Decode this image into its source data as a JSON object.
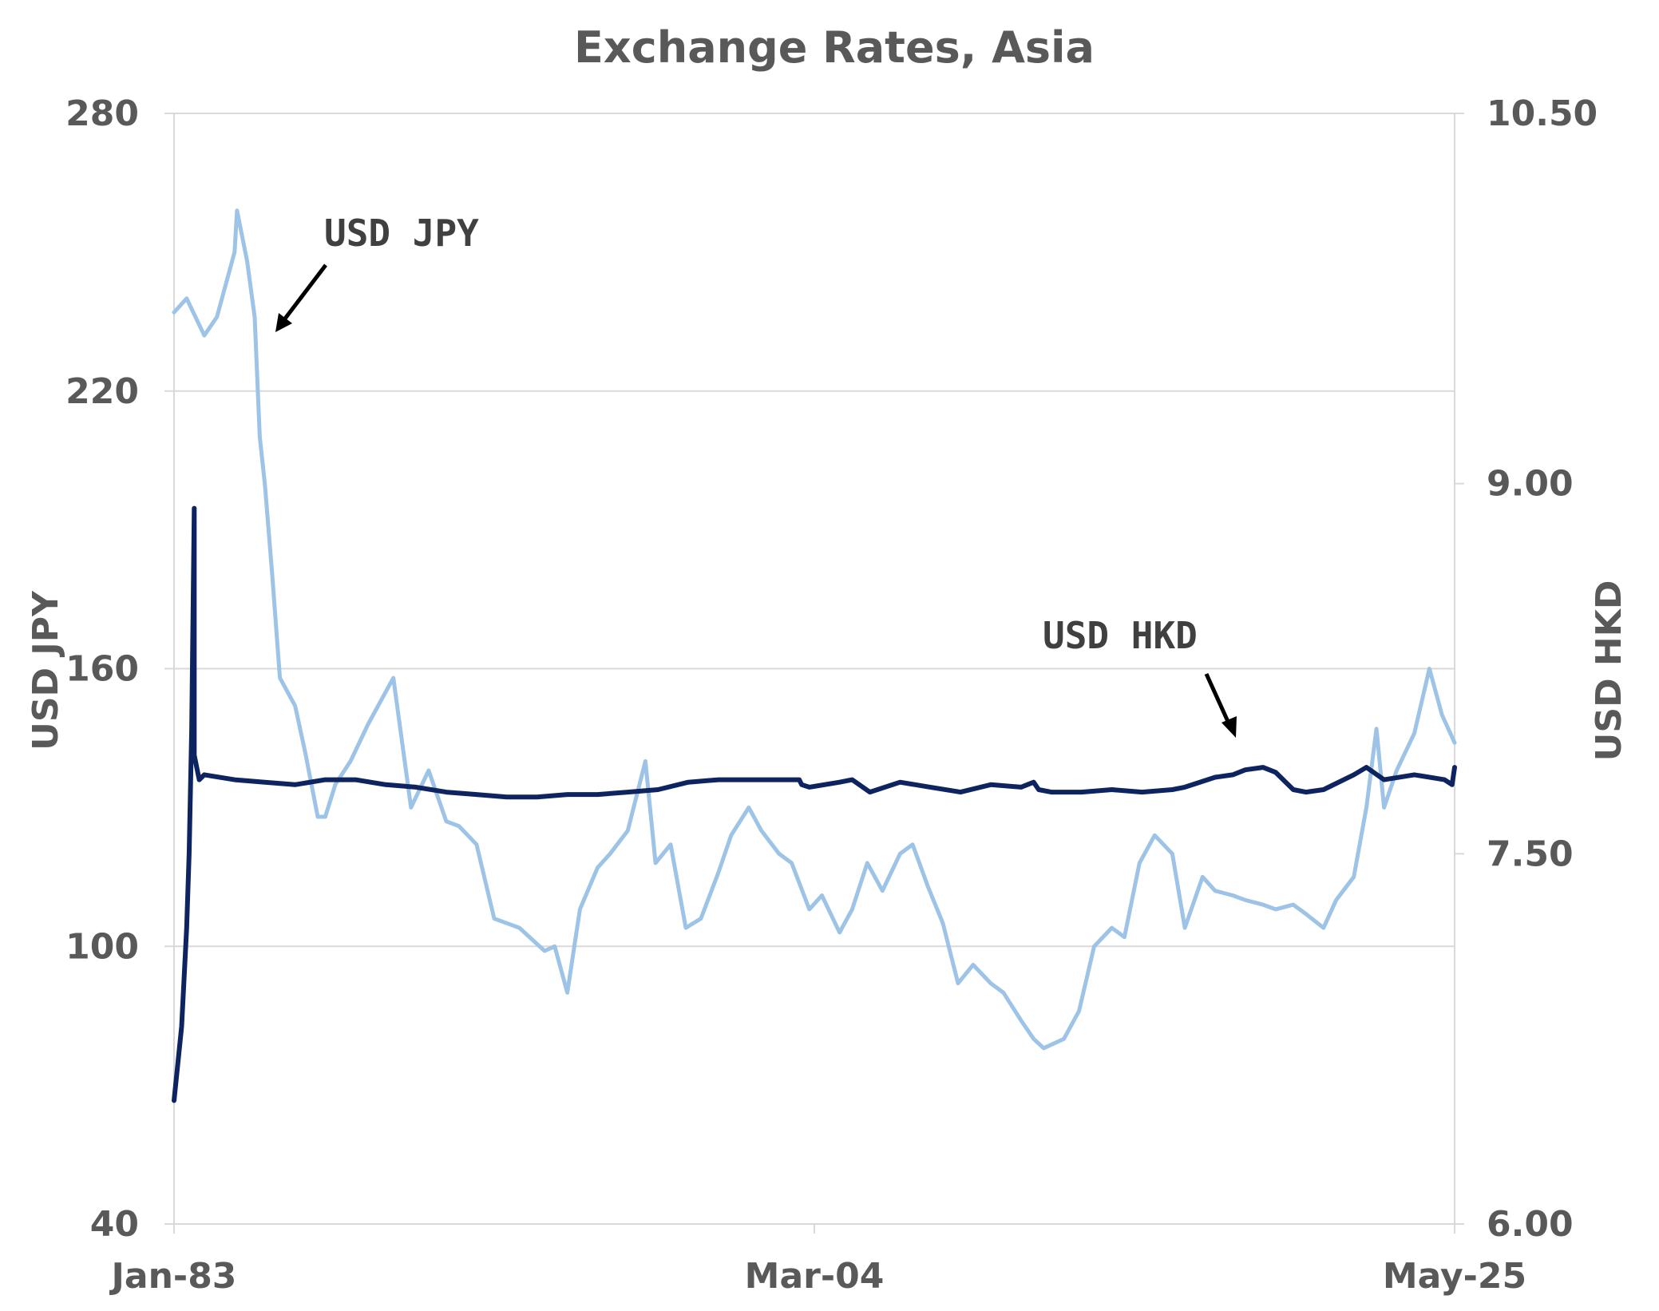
{
  "chart_data": {
    "type": "line",
    "title": "Exchange Rates, Asia",
    "x_range": [
      "Jan-83",
      "May-25"
    ],
    "x_ticks": [
      "Jan-83",
      "Mar-04",
      "May-25"
    ],
    "y_left": {
      "label": "USD  JPY",
      "range": [
        40,
        280
      ],
      "ticks": [
        "40",
        "100",
        "160",
        "220",
        "280"
      ]
    },
    "y_right": {
      "label": "USD  HKD",
      "range": [
        6.0,
        10.5
      ],
      "ticks": [
        "6.00",
        "7.50",
        "9.00",
        "10.50"
      ]
    },
    "grid": true,
    "annotations": [
      {
        "text": "USD JPY",
        "series": "USD JPY"
      },
      {
        "text": "USD  HKD",
        "series": "USD HKD"
      }
    ],
    "series": [
      {
        "name": "USD JPY",
        "axis": "left",
        "color": "#9dc3e6",
        "x": [
          "1983-01",
          "1983-06",
          "1984-01",
          "1984-06",
          "1985-01",
          "1985-02",
          "1985-06",
          "1985-09",
          "1985-11",
          "1986-01",
          "1986-04",
          "1986-07",
          "1986-10",
          "1987-01",
          "1987-05",
          "1987-10",
          "1988-01",
          "1988-05",
          "1988-11",
          "1989-06",
          "1990-04",
          "1990-11",
          "1991-06",
          "1992-01",
          "1992-06",
          "1993-01",
          "1993-08",
          "1994-06",
          "1995-04",
          "1995-08",
          "1996-01",
          "1996-06",
          "1997-01",
          "1997-06",
          "1998-01",
          "1998-08",
          "1998-12",
          "1999-06",
          "1999-12",
          "2000-06",
          "2001-01",
          "2001-06",
          "2002-01",
          "2002-06",
          "2003-01",
          "2003-06",
          "2004-01",
          "2004-06",
          "2005-01",
          "2005-06",
          "2005-12",
          "2006-06",
          "2007-01",
          "2007-06",
          "2007-12",
          "2008-06",
          "2008-12",
          "2009-06",
          "2010-01",
          "2010-06",
          "2011-01",
          "2011-06",
          "2011-10",
          "2012-06",
          "2012-12",
          "2013-06",
          "2014-01",
          "2014-06",
          "2014-12",
          "2015-06",
          "2016-01",
          "2016-06",
          "2017-01",
          "2017-06",
          "2018-01",
          "2018-06",
          "2019-01",
          "2019-06",
          "2020-01",
          "2020-06",
          "2021-01",
          "2021-06",
          "2022-01",
          "2022-06",
          "2022-10",
          "2023-01",
          "2023-06",
          "2024-01",
          "2024-07",
          "2024-12",
          "2025-05"
        ],
        "values": [
          237,
          240,
          232,
          236,
          250,
          259,
          248,
          236,
          210,
          200,
          180,
          158,
          155,
          152,
          142,
          128,
          128,
          135,
          140,
          148,
          158,
          130,
          138,
          127,
          126,
          122,
          106,
          104,
          99,
          100,
          90,
          108,
          117,
          120,
          125,
          140,
          118,
          122,
          104,
          106,
          116,
          124,
          130,
          125,
          120,
          118,
          108,
          111,
          103,
          108,
          118,
          112,
          120,
          122,
          113,
          105,
          92,
          96,
          92,
          90,
          84,
          80,
          78,
          80,
          86,
          100,
          104,
          102,
          118,
          124,
          120,
          104,
          115,
          112,
          111,
          110,
          109,
          108,
          109,
          107,
          104,
          110,
          115,
          130,
          147,
          130,
          138,
          146,
          160,
          150,
          144
        ]
      },
      {
        "name": "USD HKD",
        "axis": "right",
        "color": "#0d2460",
        "x": [
          "1983-01",
          "1983-04",
          "1983-06",
          "1983-07",
          "1983-08",
          "1983-09",
          "1983-09",
          "1983-10",
          "1983-11",
          "1984-01",
          "1985-01",
          "1986-01",
          "1987-01",
          "1988-01",
          "1989-01",
          "1990-01",
          "1991-01",
          "1992-01",
          "1993-01",
          "1994-01",
          "1995-01",
          "1996-01",
          "1997-01",
          "1998-01",
          "1999-01",
          "2000-01",
          "2001-01",
          "2002-01",
          "2003-01",
          "2003-06",
          "2003-09",
          "2003-10",
          "2004-01",
          "2005-01",
          "2005-06",
          "2006-01",
          "2007-01",
          "2008-01",
          "2009-01",
          "2010-01",
          "2011-01",
          "2011-06",
          "2011-08",
          "2012-01",
          "2013-01",
          "2014-01",
          "2015-01",
          "2016-01",
          "2016-06",
          "2017-06",
          "2018-01",
          "2018-06",
          "2019-01",
          "2019-06",
          "2020-01",
          "2020-06",
          "2021-01",
          "2022-01",
          "2022-06",
          "2023-01",
          "2024-01",
          "2025-01",
          "2025-04",
          "2025-05"
        ],
        "values": [
          6.5,
          6.8,
          7.2,
          7.5,
          8.0,
          8.9,
          7.9,
          7.85,
          7.8,
          7.82,
          7.8,
          7.79,
          7.78,
          7.8,
          7.8,
          7.78,
          7.77,
          7.75,
          7.74,
          7.73,
          7.73,
          7.74,
          7.74,
          7.75,
          7.76,
          7.79,
          7.8,
          7.8,
          7.8,
          7.8,
          7.8,
          7.78,
          7.77,
          7.79,
          7.8,
          7.75,
          7.79,
          7.77,
          7.75,
          7.78,
          7.77,
          7.79,
          7.76,
          7.75,
          7.75,
          7.76,
          7.75,
          7.76,
          7.77,
          7.81,
          7.82,
          7.84,
          7.85,
          7.83,
          7.76,
          7.75,
          7.76,
          7.82,
          7.85,
          7.8,
          7.82,
          7.8,
          7.78,
          7.85
        ]
      }
    ]
  }
}
